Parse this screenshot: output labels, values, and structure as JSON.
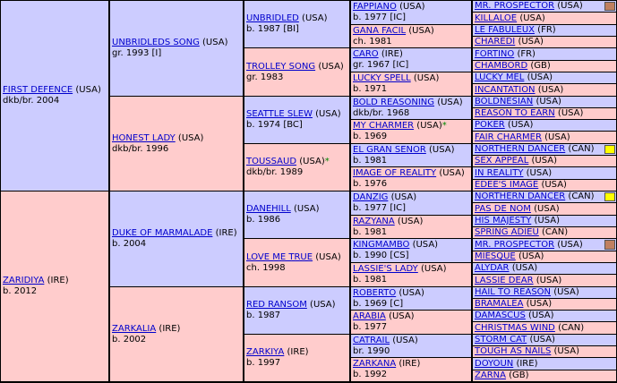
{
  "colors": {
    "male": "#ccccff",
    "female": "#ffcccc",
    "link": "#0000cc",
    "star": "#008800",
    "mark_yellow": "#ffff00",
    "mark_brown": "#c08060"
  },
  "g1": [
    {
      "name": "FIRST DEFENCE",
      "country": "(USA)",
      "info": "dkb/br. 2004",
      "sex": "m"
    },
    {
      "name": "ZARIDIYA",
      "country": "(IRE)",
      "info": "b. 2012",
      "sex": "f"
    }
  ],
  "g2": [
    {
      "name": "UNBRIDLEDS SONG",
      "country": "(USA)",
      "info": "gr. 1993 [I]",
      "sex": "m"
    },
    {
      "name": "HONEST LADY",
      "country": "(USA)",
      "info": "dkb/br. 1996",
      "sex": "f"
    },
    {
      "name": "DUKE OF MARMALADE",
      "country": "(IRE)",
      "info": "b. 2004",
      "sex": "m"
    },
    {
      "name": "ZARKALIA",
      "country": "(IRE)",
      "info": "b. 2002",
      "sex": "f"
    }
  ],
  "g3": [
    {
      "name": "UNBRIDLED",
      "country": "(USA)",
      "info": "b. 1987 [BI]",
      "sex": "m",
      "star": ""
    },
    {
      "name": "TROLLEY SONG",
      "country": "(USA)",
      "info": "gr. 1983",
      "sex": "f",
      "star": ""
    },
    {
      "name": "SEATTLE SLEW",
      "country": "(USA)",
      "info": "b. 1974 [BC]",
      "sex": "m",
      "star": ""
    },
    {
      "name": "TOUSSAUD",
      "country": "(USA)",
      "info": "dkb/br. 1989",
      "sex": "f",
      "star": "*"
    },
    {
      "name": "DANEHILL",
      "country": "(USA)",
      "info": "b. 1986",
      "sex": "m",
      "star": ""
    },
    {
      "name": "LOVE ME TRUE",
      "country": "(USA)",
      "info": "ch. 1998",
      "sex": "f",
      "star": ""
    },
    {
      "name": "RED RANSOM",
      "country": "(USA)",
      "info": "b. 1987",
      "sex": "m",
      "star": ""
    },
    {
      "name": "ZARKIYA",
      "country": "(IRE)",
      "info": "b. 1997",
      "sex": "f",
      "star": ""
    }
  ],
  "g4": [
    {
      "name": "FAPPIANO",
      "country": "(USA)",
      "info": "b. 1977 [IC]",
      "sex": "m",
      "star": ""
    },
    {
      "name": "GANA FACIL",
      "country": "(USA)",
      "info": "ch. 1981",
      "sex": "f",
      "star": ""
    },
    {
      "name": "CARO",
      "country": "(IRE)",
      "info": "gr. 1967 [IC]",
      "sex": "m",
      "star": ""
    },
    {
      "name": "LUCKY SPELL",
      "country": "(USA)",
      "info": "b. 1971",
      "sex": "f",
      "star": ""
    },
    {
      "name": "BOLD REASONING",
      "country": "(USA)",
      "info": "dkb/br. 1968",
      "sex": "m",
      "star": ""
    },
    {
      "name": "MY CHARMER",
      "country": "(USA)",
      "info": "b. 1969",
      "sex": "f",
      "star": "*"
    },
    {
      "name": "EL GRAN SENOR",
      "country": "(USA)",
      "info": "b. 1981",
      "sex": "m",
      "star": ""
    },
    {
      "name": "IMAGE OF REALITY",
      "country": "(USA)",
      "info": "b. 1976",
      "sex": "f",
      "star": ""
    },
    {
      "name": "DANZIG",
      "country": "(USA)",
      "info": "b. 1977 [IC]",
      "sex": "m",
      "star": ""
    },
    {
      "name": "RAZYANA",
      "country": "(USA)",
      "info": "b. 1981",
      "sex": "f",
      "star": ""
    },
    {
      "name": "KINGMAMBO",
      "country": "(USA)",
      "info": "b. 1990 [CS]",
      "sex": "m",
      "star": ""
    },
    {
      "name": "LASSIE'S LADY",
      "country": "(USA)",
      "info": "b. 1981",
      "sex": "f",
      "star": ""
    },
    {
      "name": "ROBERTO",
      "country": "(USA)",
      "info": "b. 1969 [C]",
      "sex": "m",
      "star": ""
    },
    {
      "name": "ARABIA",
      "country": "(USA)",
      "info": "b. 1977",
      "sex": "f",
      "star": ""
    },
    {
      "name": "CATRAIL",
      "country": "(USA)",
      "info": "br. 1990",
      "sex": "m",
      "star": ""
    },
    {
      "name": "ZARKANA",
      "country": "(IRE)",
      "info": "b. 1992",
      "sex": "f",
      "star": ""
    }
  ],
  "g5": [
    {
      "name": "MR. PROSPECTOR",
      "country": "(USA)",
      "sex": "m",
      "mark": "brown"
    },
    {
      "name": "KILLALOE",
      "country": "(USA)",
      "sex": "f",
      "mark": ""
    },
    {
      "name": "LE FABULEUX",
      "country": "(FR)",
      "sex": "m",
      "mark": ""
    },
    {
      "name": "CHAREDI",
      "country": "(USA)",
      "sex": "f",
      "mark": ""
    },
    {
      "name": "FORTINO",
      "country": "(FR)",
      "sex": "m",
      "mark": ""
    },
    {
      "name": "CHAMBORD",
      "country": "(GB)",
      "sex": "f",
      "mark": ""
    },
    {
      "name": "LUCKY MEL",
      "country": "(USA)",
      "sex": "m",
      "mark": ""
    },
    {
      "name": "INCANTATION",
      "country": "(USA)",
      "sex": "f",
      "mark": ""
    },
    {
      "name": "BOLDNESIAN",
      "country": "(USA)",
      "sex": "m",
      "mark": ""
    },
    {
      "name": "REASON TO EARN",
      "country": "(USA)",
      "sex": "f",
      "mark": ""
    },
    {
      "name": "POKER",
      "country": "(USA)",
      "sex": "m",
      "mark": ""
    },
    {
      "name": "FAIR CHARMER",
      "country": "(USA)",
      "sex": "f",
      "mark": ""
    },
    {
      "name": "NORTHERN DANCER",
      "country": "(CAN)",
      "sex": "m",
      "mark": "yellow"
    },
    {
      "name": "SEX APPEAL",
      "country": "(USA)",
      "sex": "f",
      "mark": ""
    },
    {
      "name": "IN REALITY",
      "country": "(USA)",
      "sex": "m",
      "mark": ""
    },
    {
      "name": "EDEE'S IMAGE",
      "country": "(USA)",
      "sex": "f",
      "mark": ""
    },
    {
      "name": "NORTHERN DANCER",
      "country": "(CAN)",
      "sex": "m",
      "mark": "yellow"
    },
    {
      "name": "PAS DE NOM",
      "country": "(USA)",
      "sex": "f",
      "mark": ""
    },
    {
      "name": "HIS MAJESTY",
      "country": "(USA)",
      "sex": "m",
      "mark": ""
    },
    {
      "name": "SPRING ADIEU",
      "country": "(CAN)",
      "sex": "f",
      "mark": ""
    },
    {
      "name": "MR. PROSPECTOR",
      "country": "(USA)",
      "sex": "m",
      "mark": "brown"
    },
    {
      "name": "MIESQUE",
      "country": "(USA)",
      "sex": "f",
      "mark": ""
    },
    {
      "name": "ALYDAR",
      "country": "(USA)",
      "sex": "m",
      "mark": ""
    },
    {
      "name": "LASSIE DEAR",
      "country": "(USA)",
      "sex": "f",
      "mark": ""
    },
    {
      "name": "HAIL TO REASON",
      "country": "(USA)",
      "sex": "m",
      "mark": ""
    },
    {
      "name": "BRAMALEA",
      "country": "(USA)",
      "sex": "f",
      "mark": ""
    },
    {
      "name": "DAMASCUS",
      "country": "(USA)",
      "sex": "m",
      "mark": ""
    },
    {
      "name": "CHRISTMAS WIND",
      "country": "(CAN)",
      "sex": "f",
      "mark": ""
    },
    {
      "name": "STORM CAT",
      "country": "(USA)",
      "sex": "m",
      "mark": ""
    },
    {
      "name": "TOUGH AS NAILS",
      "country": "(USA)",
      "sex": "f",
      "mark": ""
    },
    {
      "name": "DOYOUN",
      "country": "(IRE)",
      "sex": "m",
      "mark": ""
    },
    {
      "name": "ZARNA",
      "country": "(GB)",
      "sex": "f",
      "mark": ""
    }
  ]
}
